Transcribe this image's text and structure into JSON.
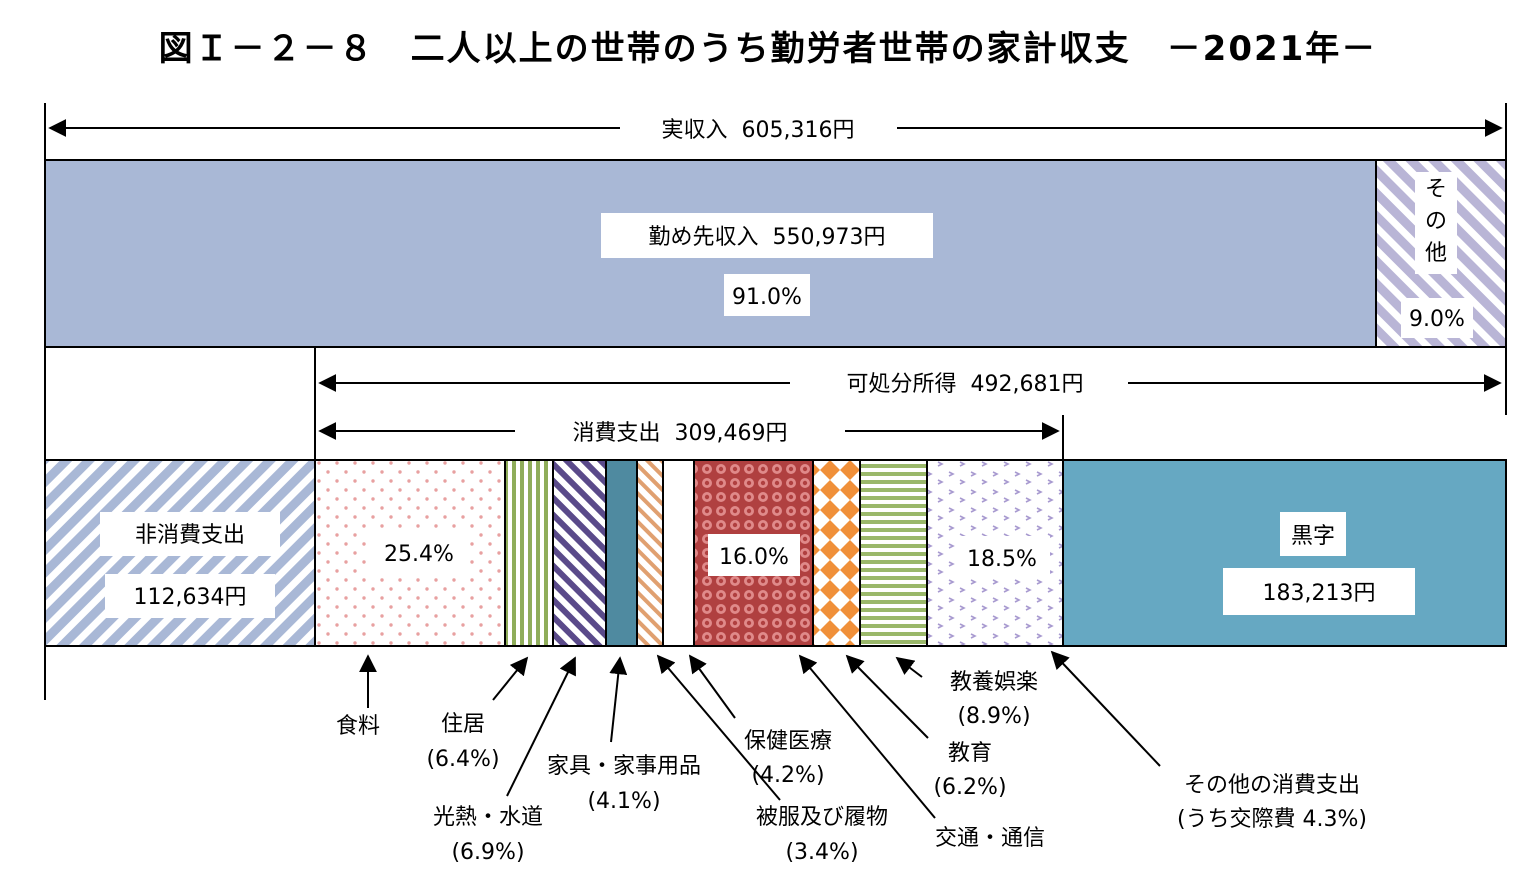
{
  "chart_data": {
    "type": "bar",
    "title": "図Ｉ－２－８　二人以上の世帯のうち勤労者世帯の家計収支　－2021年－",
    "income": {
      "label": "実収入",
      "amount": "605,316円",
      "value": 605316,
      "segments": [
        {
          "name": "勤め先収入",
          "amount": "550,973円",
          "value": 550973,
          "share": 91.0,
          "pct_label": "91.0%",
          "color": "#a9b8d6"
        },
        {
          "name": "その他",
          "share": 9.0,
          "pct_label": "9.0%",
          "color": "#b9b5d6"
        }
      ]
    },
    "disposable": {
      "label": "可処分所得",
      "amount": "492,681円",
      "value": 492681
    },
    "consumption": {
      "label": "消費支出",
      "amount": "309,469円",
      "value": 309469
    },
    "outlays": [
      {
        "name": "非消費支出",
        "amount": "112,634円",
        "value": 112634,
        "color": "#a9b8d6"
      },
      {
        "name": "食料",
        "share": 25.4,
        "pct_label": "25.4%",
        "color": "#e8a0a0"
      },
      {
        "name": "住居",
        "share": 6.4,
        "pct_label": "(6.4%)",
        "color": "#8fad5a"
      },
      {
        "name": "光熱・水道",
        "share": 6.9,
        "pct_label": "(6.9%)",
        "color": "#5a4a8a"
      },
      {
        "name": "家具・家事用品",
        "share": 4.1,
        "pct_label": "(4.1%)",
        "color": "#4f8aa0"
      },
      {
        "name": "被服及び履物",
        "share": 3.4,
        "pct_label": "(3.4%)",
        "color": "#e0a070"
      },
      {
        "name": "保健医療",
        "share": 4.2,
        "pct_label": "(4.2%)",
        "color": "#ffffff"
      },
      {
        "name": "交通・通信",
        "share": 16.0,
        "pct_label": "16.0%",
        "color": "#b04040"
      },
      {
        "name": "教育",
        "share": 6.2,
        "pct_label": "(6.2%)",
        "color": "#f0903a"
      },
      {
        "name": "教養娯楽",
        "share": 8.9,
        "pct_label": "(8.9%)",
        "color": "#9ab86a"
      },
      {
        "name": "その他の消費支出",
        "share": 18.5,
        "pct_label": "18.5%",
        "note": "(うち交際費 4.3%)",
        "color": "#a89ad0"
      },
      {
        "name": "黒字",
        "amount": "183,213円",
        "value": 183213,
        "color": "#66a8c2"
      }
    ]
  }
}
